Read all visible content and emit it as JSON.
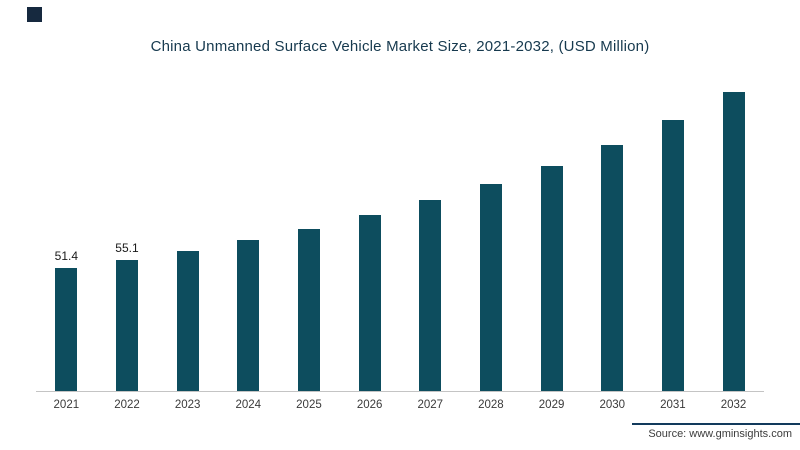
{
  "title": "China Unmanned Surface Vehicle Market Size, 2021-2032, (USD Million)",
  "source": "Source: www.gminsights.com",
  "colors": {
    "bar": "#0d4d5e",
    "title": "#16394e",
    "axis": "#c4c4c4",
    "tick": "#3a3a3a",
    "value_label": "#1a1a1a",
    "logo": "#16293f",
    "source_divider": "#123a5c"
  },
  "chart_data": {
    "type": "bar",
    "title": "China Unmanned Surface Vehicle Market Size, 2021-2032, (USD Million)",
    "categories": [
      "2021",
      "2022",
      "2023",
      "2024",
      "2025",
      "2026",
      "2027",
      "2028",
      "2029",
      "2030",
      "2031",
      "2032"
    ],
    "values": [
      51.4,
      55.1,
      58.5,
      63.5,
      68,
      74,
      80,
      87,
      94.5,
      103,
      113.5,
      125.5
    ],
    "data_labels": [
      "51.4",
      "55.1",
      "",
      "",
      "",
      "",
      "",
      "",
      "",
      "",
      "",
      ""
    ],
    "xlabel": "",
    "ylabel": "USD Million",
    "ylim": [
      0,
      130
    ],
    "grid": false,
    "legend": "none",
    "note": "Only 2021 and 2022 bars carry visible data labels; remaining values estimated from bar heights"
  }
}
